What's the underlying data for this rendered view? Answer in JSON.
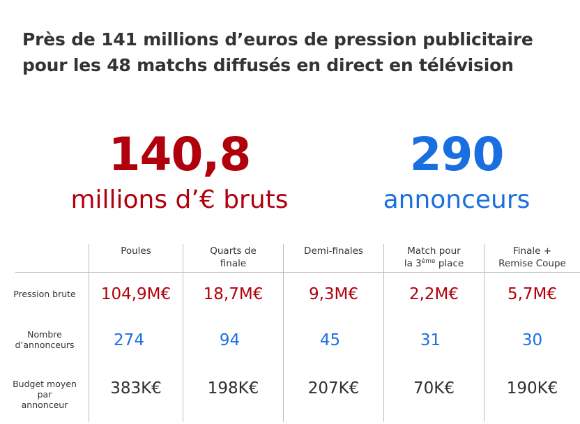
{
  "title_line1": "Près de 141 millions d’euros de pression publicitaire",
  "title_line2": "pour les 48 matchs diffusés en direct en télévision",
  "kpis": {
    "pression": {
      "value": "140,8",
      "label": "millions d’€ bruts",
      "color": "#b0000b"
    },
    "annonceurs": {
      "value": "290",
      "label": "annonceurs",
      "color": "#1a6fe0"
    }
  },
  "chart_data": {
    "type": "table",
    "columns": [
      "Poules",
      "Quarts de finale",
      "Demi-finales",
      "Match pour la 3ème place",
      "Finale + Remise Coupe"
    ],
    "column_lines": [
      [
        "Poules",
        ""
      ],
      [
        "Quarts de",
        "finale"
      ],
      [
        "Demi-finales",
        ""
      ],
      [
        "Match pour",
        "la 3",
        "ème",
        " place"
      ],
      [
        "Finale +",
        "Remise Coupe"
      ]
    ],
    "rows": [
      {
        "label": "Pression brute",
        "label_lines": [
          "Pression brute"
        ],
        "color": "#b0000b",
        "cells": [
          "104,9M€",
          "18,7M€",
          "9,3M€",
          "2,2M€",
          "5,7M€"
        ]
      },
      {
        "label": "Nombre d’annonceurs",
        "label_lines": [
          "Nombre",
          "d’annonceurs"
        ],
        "color": "#1a6fe0",
        "cells": [
          "274",
          "94",
          "45",
          "31",
          "30"
        ]
      },
      {
        "label": "Budget moyen par annonceur",
        "label_lines": [
          "Budget moyen",
          "par",
          "annonceur"
        ],
        "color": "#2e2e2e",
        "cells": [
          "383K€",
          "198K€",
          "207K€",
          "70K€",
          "190K€"
        ]
      }
    ]
  }
}
